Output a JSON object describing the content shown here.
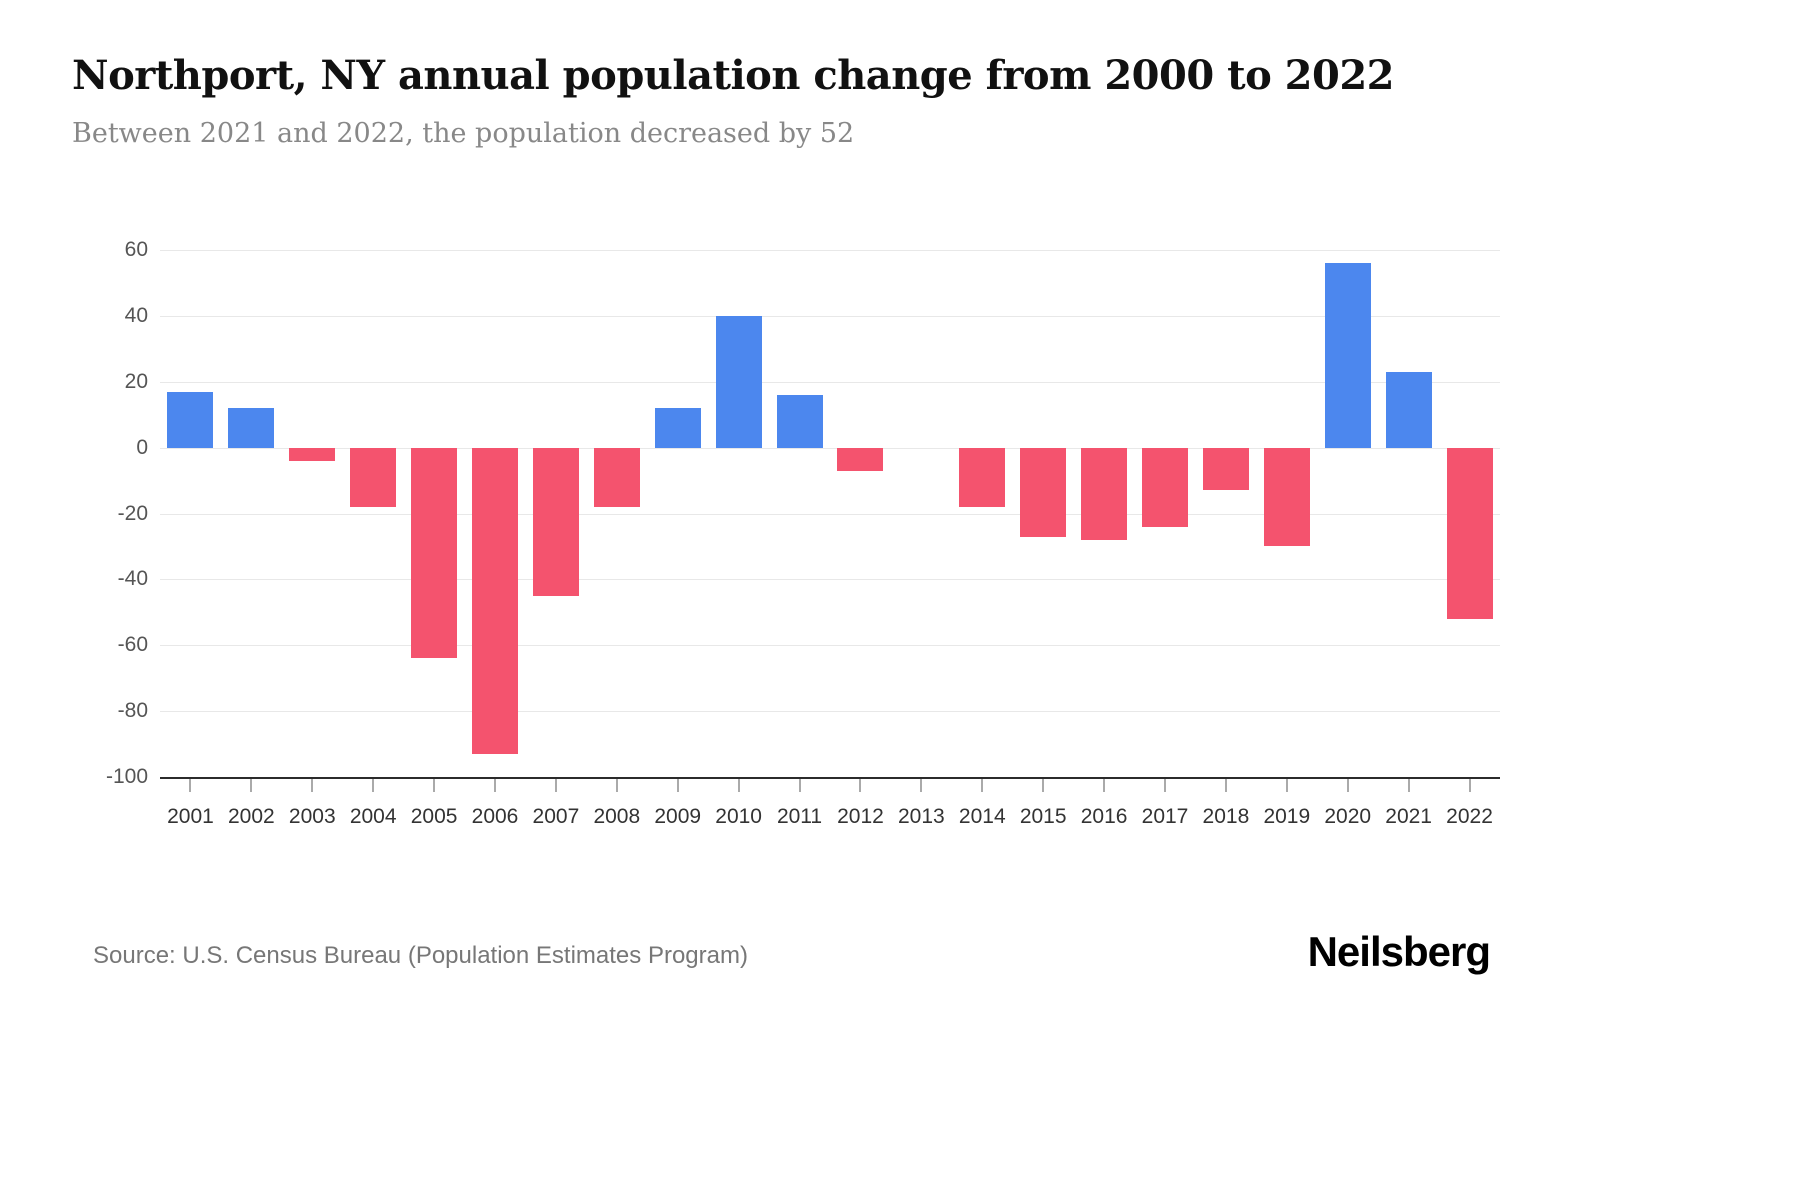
{
  "header": {
    "title": "Northport, NY annual population change from 2000 to 2022",
    "subtitle": "Between 2021 and 2022, the population decreased by 52"
  },
  "footer": {
    "source": "Source: U.S. Census Bureau (Population Estimates Program)",
    "brand": "Neilsberg"
  },
  "chart_data": {
    "type": "bar",
    "title": "Northport, NY annual population change from 2000 to 2022",
    "subtitle": "Between 2021 and 2022, the population decreased by 52",
    "xlabel": "",
    "ylabel": "",
    "categories": [
      "2001",
      "2002",
      "2003",
      "2004",
      "2005",
      "2006",
      "2007",
      "2008",
      "2009",
      "2010",
      "2011",
      "2012",
      "2013",
      "2014",
      "2015",
      "2016",
      "2017",
      "2018",
      "2019",
      "2020",
      "2021",
      "2022"
    ],
    "values": [
      17,
      12,
      -4,
      -18,
      -64,
      -93,
      -45,
      -18,
      12,
      40,
      16,
      -7,
      0,
      -18,
      -27,
      -28,
      -24,
      -13,
      -30,
      56,
      23,
      -52
    ],
    "ylim": [
      -100,
      60
    ],
    "yticks": [
      60,
      40,
      20,
      0,
      -20,
      -40,
      -60,
      -80,
      -100
    ],
    "grid": true,
    "legend": false,
    "positive_color": "#4c87ee",
    "negative_color": "#f4536e",
    "gridline_color": "#e8e8e8",
    "axis_line_color": "#2b2b2b"
  }
}
